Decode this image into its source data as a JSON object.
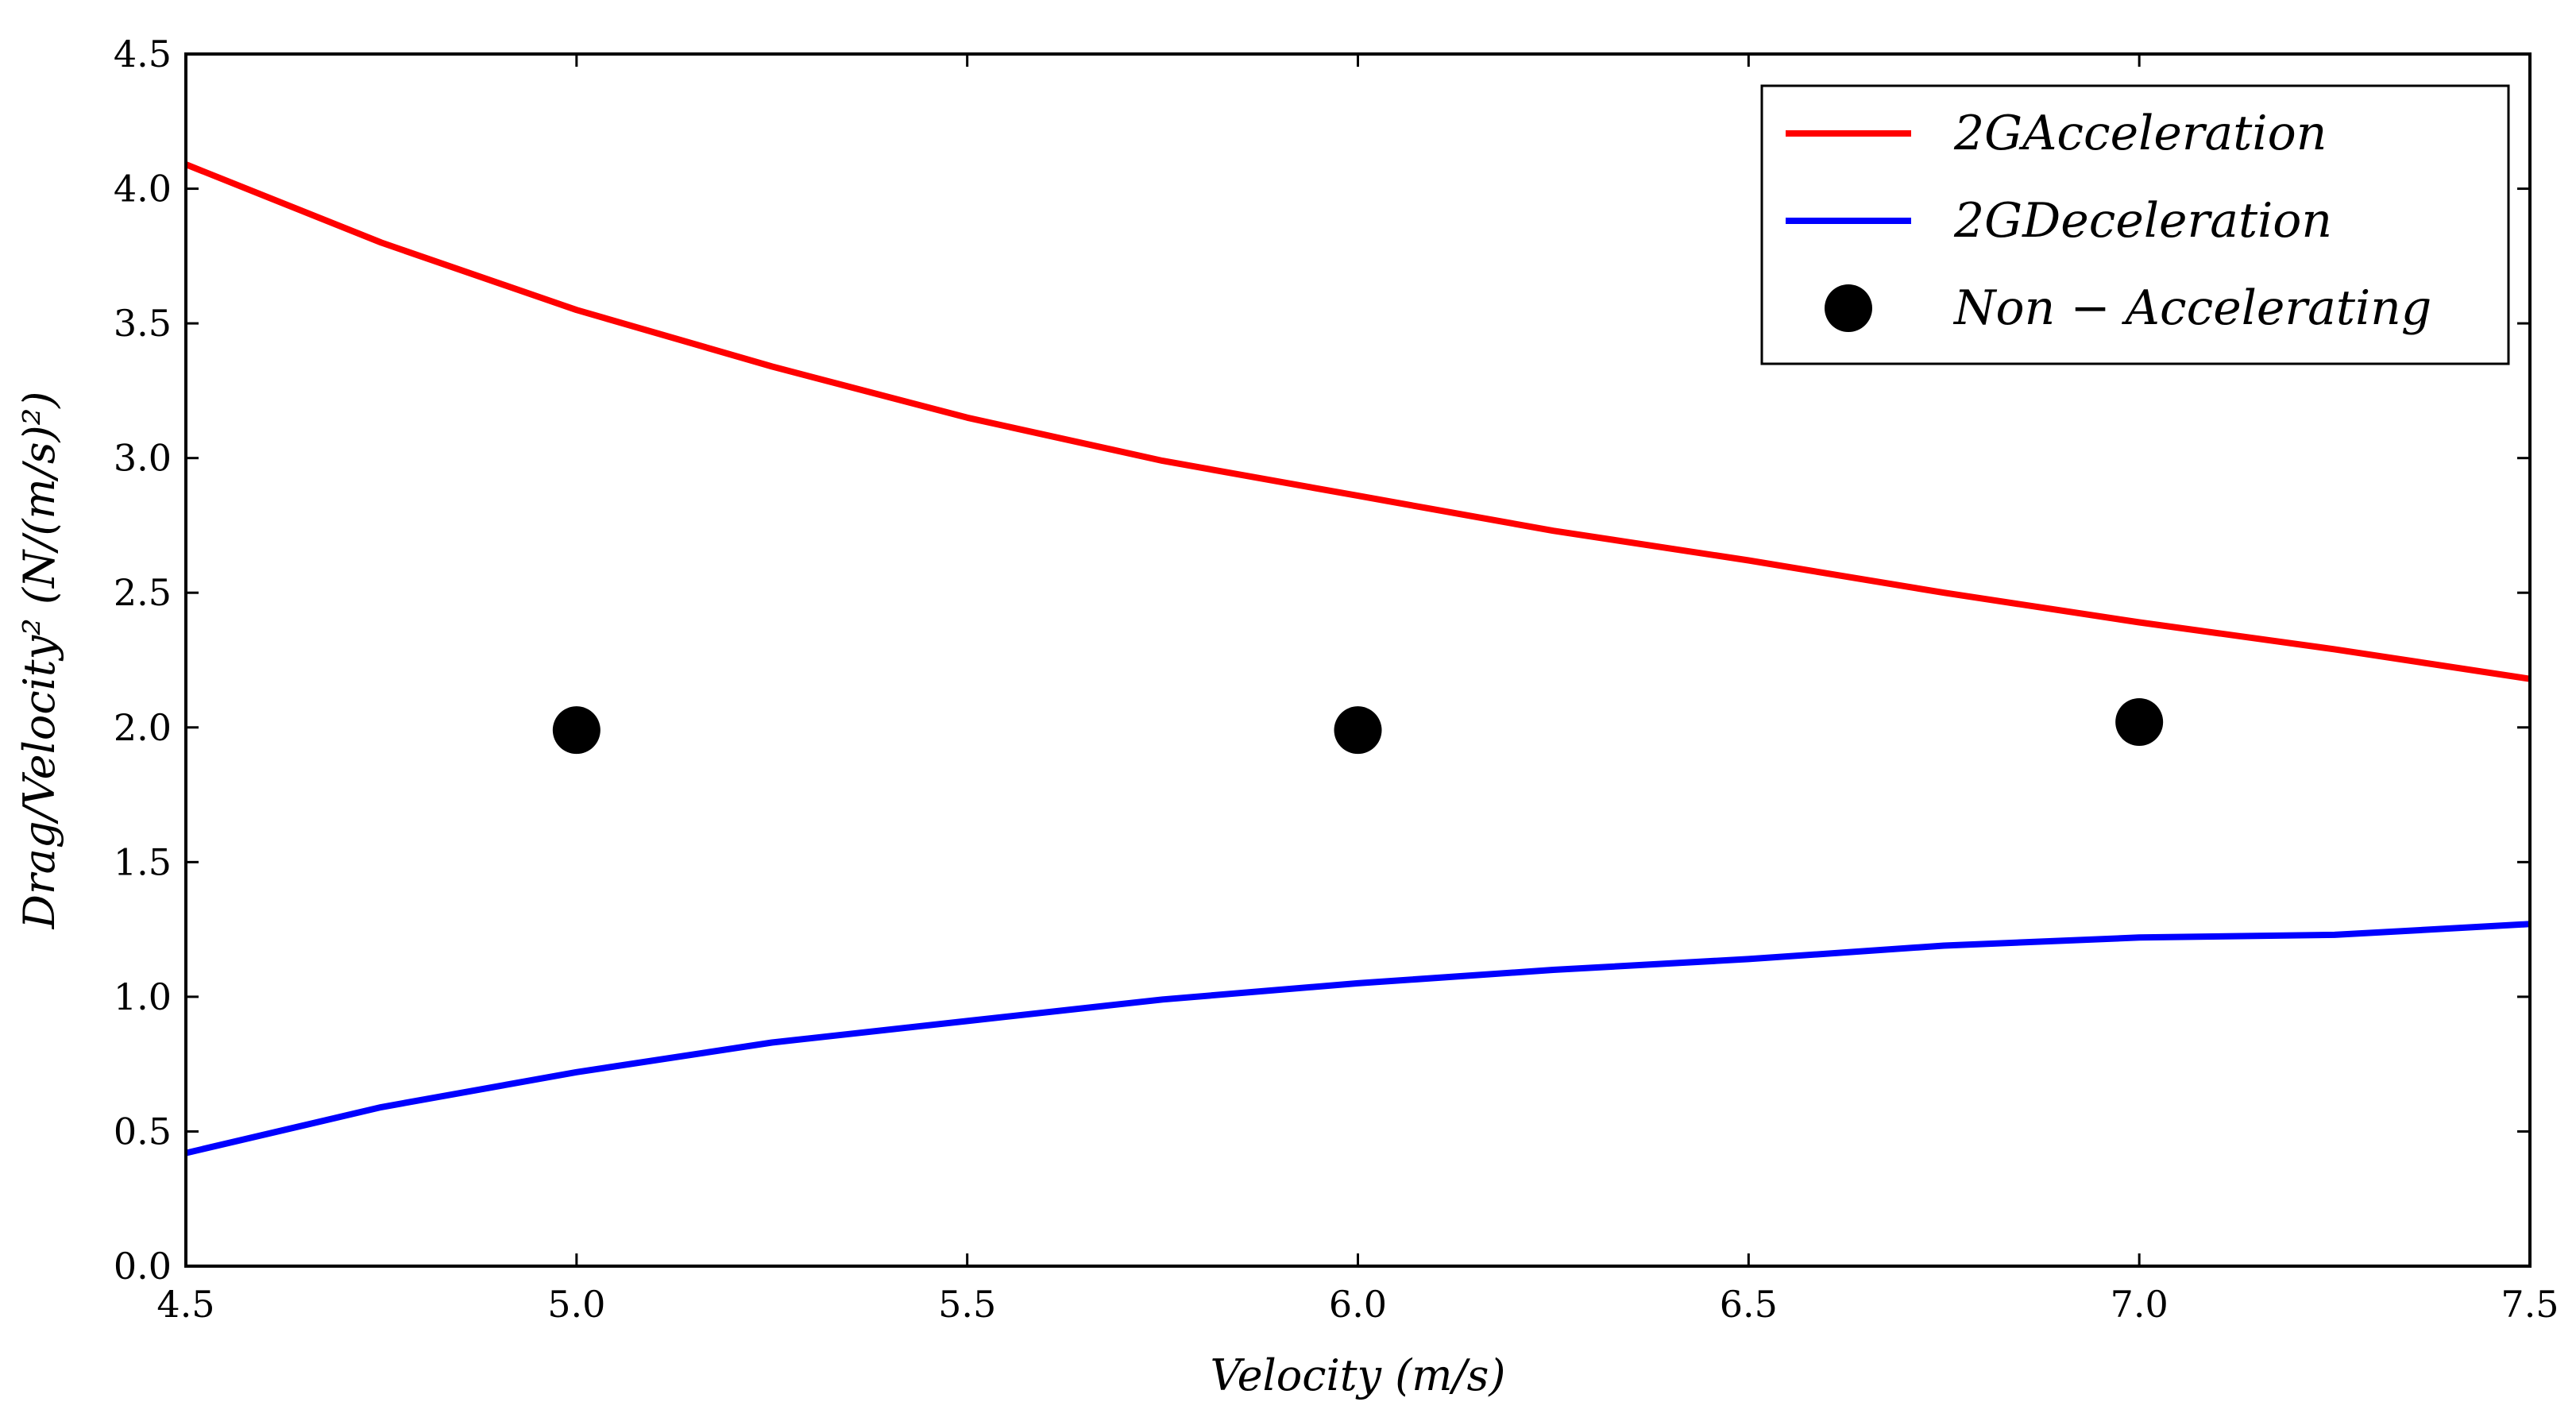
{
  "chart_data": {
    "type": "line",
    "title": "",
    "xlabel": "Velocity (m/s)",
    "ylabel": "Drag/Velocity² (N/(m/s)²)",
    "xlim": [
      4.5,
      7.5
    ],
    "ylim": [
      0.0,
      4.5
    ],
    "xticks": [
      4.5,
      5.0,
      5.5,
      6.0,
      6.5,
      7.0,
      7.5
    ],
    "xtick_labels": [
      "4.5",
      "5.0",
      "5.5",
      "6.0",
      "6.5",
      "7.0",
      "7.5"
    ],
    "yticks": [
      0.0,
      0.5,
      1.0,
      1.5,
      2.0,
      2.5,
      3.0,
      3.5,
      4.0,
      4.5
    ],
    "ytick_labels": [
      "0.0",
      "0.5",
      "1.0",
      "1.5",
      "2.0",
      "2.5",
      "3.0",
      "3.5",
      "4.0",
      "4.5"
    ],
    "grid": false,
    "legend_position": "top-right",
    "series": [
      {
        "name": "2GAcceleration",
        "kind": "line",
        "color": "#ff0000",
        "x": [
          4.5,
          4.75,
          5.0,
          5.25,
          5.5,
          5.75,
          6.0,
          6.25,
          6.5,
          6.75,
          7.0,
          7.25,
          7.5
        ],
        "y": [
          4.09,
          3.8,
          3.55,
          3.34,
          3.15,
          2.99,
          2.86,
          2.73,
          2.62,
          2.5,
          2.39,
          2.29,
          2.18
        ]
      },
      {
        "name": "2GDeceleration",
        "kind": "line",
        "color": "#0000ff",
        "x": [
          4.5,
          4.75,
          5.0,
          5.25,
          5.5,
          5.75,
          6.0,
          6.25,
          6.5,
          6.75,
          7.0,
          7.25,
          7.5
        ],
        "y": [
          0.42,
          0.59,
          0.72,
          0.83,
          0.91,
          0.99,
          1.05,
          1.1,
          1.14,
          1.19,
          1.22,
          1.23,
          1.27
        ]
      },
      {
        "name": "Non − Accelerating",
        "kind": "scatter",
        "color": "#000000",
        "x": [
          5.0,
          6.0,
          7.0
        ],
        "y": [
          1.99,
          1.99,
          2.02
        ]
      }
    ]
  }
}
